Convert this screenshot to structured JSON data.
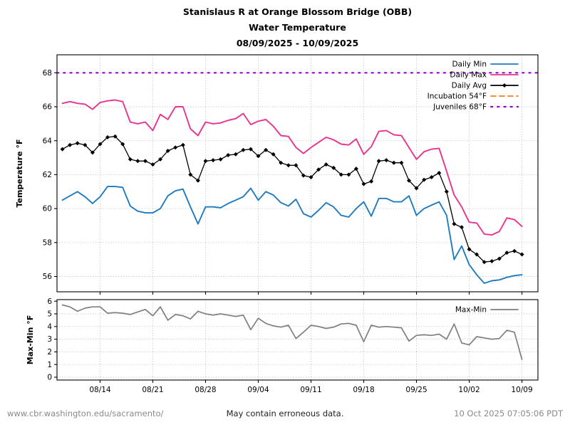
{
  "title": {
    "line1": "Stanislaus R at Orange Blossom Bridge (OBB)",
    "line2": "Water Temperature",
    "line3": "08/09/2025 - 10/09/2025"
  },
  "footer": {
    "url": "www.cbr.washington.edu/sacramento/",
    "disclaimer": "May contain erroneous data.",
    "timestamp": "10 Oct 2025 07:05:06 PDT"
  },
  "colors": {
    "daily_min": "#1f7bbf",
    "daily_max": "#e8338f",
    "daily_avg": "#000000",
    "incubation": "#ee7f1d",
    "juveniles": "#9400d3",
    "max_min": "#7f7f7f",
    "grid": "#b8b8b8",
    "axis": "#000000",
    "footer_gray": "#8a8a8a"
  },
  "chart_data": [
    {
      "type": "line",
      "title": "Stanislaus R at Orange Blossom Bridge (OBB) Water Temperature 08/09/2025 - 10/09/2025",
      "xlabel": "",
      "ylabel": "Temperature °F",
      "x_unit": "day index from 08/09/2025",
      "x_start_date": "08/09/2025",
      "x_end_date": "10/09/2025",
      "n_points": 62,
      "ylim": [
        55.1,
        69.05
      ],
      "yticks": [
        56,
        58,
        60,
        62,
        64,
        66,
        68
      ],
      "x_tick_days": [
        5,
        12,
        19,
        26,
        33,
        40,
        47,
        54,
        61
      ],
      "x_tick_labels": [
        "08/14",
        "08/21",
        "08/28",
        "09/04",
        "09/11",
        "09/18",
        "09/25",
        "10/02",
        "10/09"
      ],
      "grid": true,
      "legend_position": "upper right",
      "series": [
        {
          "name": "Daily Min",
          "color_key": "daily_min",
          "style": "solid",
          "values": [
            60.5,
            60.75,
            61.0,
            60.7,
            60.3,
            60.7,
            61.3,
            61.3,
            61.25,
            60.15,
            59.85,
            59.75,
            59.75,
            60.0,
            60.75,
            61.05,
            61.15,
            60.1,
            59.1,
            60.1,
            60.1,
            60.05,
            60.3,
            60.5,
            60.7,
            61.2,
            60.5,
            61.0,
            60.8,
            60.35,
            60.15,
            60.55,
            59.7,
            59.5,
            59.9,
            60.35,
            60.1,
            59.6,
            59.5,
            60.0,
            60.4,
            59.55,
            60.6,
            60.6,
            60.4,
            60.4,
            60.75,
            59.6,
            60.0,
            60.2,
            60.4,
            59.6,
            57.0,
            57.8,
            56.7,
            56.1,
            55.6,
            55.75,
            55.8,
            55.95,
            56.05,
            56.1
          ]
        },
        {
          "name": "Daily Max",
          "color_key": "daily_max",
          "style": "solid",
          "values": [
            66.2,
            66.3,
            66.2,
            66.15,
            65.85,
            66.25,
            66.35,
            66.4,
            66.3,
            65.1,
            65.0,
            65.1,
            64.6,
            65.55,
            65.25,
            66.0,
            66.0,
            64.7,
            64.3,
            65.1,
            65.0,
            65.05,
            65.2,
            65.3,
            65.6,
            64.95,
            65.15,
            65.25,
            64.85,
            64.3,
            64.25,
            63.6,
            63.25,
            63.6,
            63.9,
            64.2,
            64.05,
            63.8,
            63.75,
            64.1,
            63.2,
            63.65,
            64.55,
            64.6,
            64.35,
            64.3,
            63.6,
            62.9,
            63.35,
            63.5,
            63.55,
            62.2,
            60.8,
            60.1,
            59.2,
            59.15,
            58.5,
            58.45,
            58.65,
            59.45,
            59.35,
            58.95
          ]
        },
        {
          "name": "Daily Avg",
          "color_key": "daily_avg",
          "style": "solid-marker",
          "values": [
            63.5,
            63.75,
            63.85,
            63.75,
            63.3,
            63.8,
            64.2,
            64.25,
            63.8,
            62.9,
            62.8,
            62.8,
            62.6,
            62.9,
            63.4,
            63.6,
            63.75,
            62.0,
            61.65,
            62.8,
            62.85,
            62.9,
            63.15,
            63.2,
            63.45,
            63.5,
            63.1,
            63.45,
            63.2,
            62.7,
            62.55,
            62.55,
            61.95,
            61.85,
            62.3,
            62.6,
            62.4,
            62.0,
            62.0,
            62.35,
            61.45,
            61.6,
            62.8,
            62.85,
            62.7,
            62.7,
            61.65,
            61.2,
            61.7,
            61.85,
            62.1,
            61.0,
            59.1,
            58.9,
            57.6,
            57.3,
            56.85,
            56.9,
            57.05,
            57.4,
            57.5,
            57.3
          ]
        }
      ],
      "ref_lines": [
        {
          "name": "Incubation 54°F",
          "value": 54,
          "color_key": "incubation",
          "style": "dashed"
        },
        {
          "name": "Juveniles 68°F",
          "value": 68,
          "color_key": "juveniles",
          "style": "dotted"
        }
      ],
      "legend": [
        {
          "label": "Daily Min",
          "color_key": "daily_min",
          "style": "solid"
        },
        {
          "label": "Daily Max",
          "color_key": "daily_max",
          "style": "solid"
        },
        {
          "label": "Daily Avg",
          "color_key": "daily_avg",
          "style": "solid-marker"
        },
        {
          "label": "Incubation 54°F",
          "color_key": "incubation",
          "style": "dashed"
        },
        {
          "label": "Juveniles 68°F",
          "color_key": "juveniles",
          "style": "dotted"
        }
      ]
    },
    {
      "type": "line",
      "title": "",
      "xlabel": "",
      "ylabel": "Max-Min °F",
      "x_unit": "day index from 08/09/2025",
      "n_points": 62,
      "ylim": [
        -0.25,
        6.1
      ],
      "yticks": [
        0,
        1,
        2,
        3,
        4,
        5,
        6
      ],
      "x_tick_days": [
        5,
        12,
        19,
        26,
        33,
        40,
        47,
        54,
        61
      ],
      "x_tick_labels": [
        "08/14",
        "08/21",
        "08/28",
        "09/04",
        "09/11",
        "09/18",
        "09/25",
        "10/02",
        "10/09"
      ],
      "grid": true,
      "legend_position": "upper right",
      "series": [
        {
          "name": "Max-Min",
          "color_key": "max_min",
          "style": "solid",
          "values": [
            5.7,
            5.55,
            5.2,
            5.45,
            5.55,
            5.55,
            5.05,
            5.1,
            5.05,
            4.95,
            5.15,
            5.35,
            4.85,
            5.55,
            4.5,
            4.95,
            4.85,
            4.6,
            5.2,
            5.0,
            4.9,
            5.0,
            4.9,
            4.8,
            4.9,
            3.75,
            4.65,
            4.25,
            4.05,
            3.95,
            4.1,
            3.05,
            3.55,
            4.1,
            4.0,
            3.85,
            3.95,
            4.2,
            4.25,
            4.1,
            2.8,
            4.1,
            3.95,
            4.0,
            3.95,
            3.9,
            2.85,
            3.3,
            3.35,
            3.3,
            3.4,
            3.0,
            4.2,
            2.7,
            2.55,
            3.2,
            3.1,
            3.0,
            3.05,
            3.7,
            3.55,
            1.4
          ]
        }
      ],
      "legend": [
        {
          "label": "Max-Min",
          "color_key": "max_min",
          "style": "solid"
        }
      ]
    }
  ]
}
